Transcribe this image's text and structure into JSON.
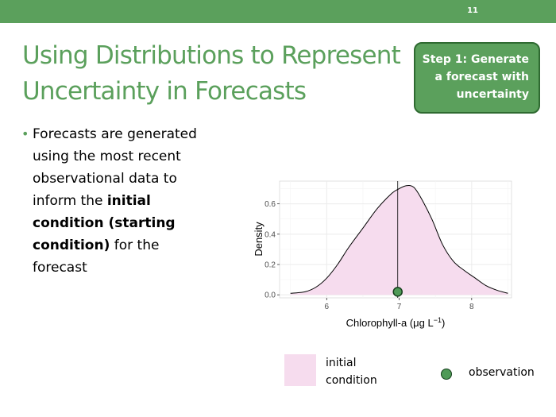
{
  "slide": {
    "number": "11",
    "title_lines": [
      "Using Distributions to Represent",
      "Uncertainty in Forecasts"
    ],
    "step_box_lines": [
      "Step 1: Generate",
      "a forecast with",
      "uncertainty"
    ],
    "bullet": {
      "lines": [
        {
          "pre": "Forecasts are generated",
          "bold": "",
          "post": ""
        },
        {
          "pre": "using the most recent",
          "bold": "",
          "post": ""
        },
        {
          "pre": "observational data to",
          "bold": "",
          "post": ""
        },
        {
          "pre": "inform the ",
          "bold": "initial",
          "post": ""
        },
        {
          "pre": "",
          "bold": "condition (starting",
          "post": ""
        },
        {
          "pre": "",
          "bold": "condition)",
          "post": " for the"
        },
        {
          "pre": "forecast",
          "bold": "",
          "post": ""
        }
      ]
    },
    "legend": {
      "initial_condition_lines": [
        "initial",
        "condition"
      ],
      "observation_label": "observation"
    },
    "colors": {
      "accent": "#5ba05c",
      "density_fill": "#f6dcee",
      "observation_fill": "#4f9a57"
    }
  },
  "chart_data": {
    "type": "area",
    "xlabel": "Chlorophyll-a (μg L",
    "xlabel_sup": "−1",
    "xlabel_close": ")",
    "ylabel": "Density",
    "xlim": [
      5.35,
      8.55
    ],
    "ylim": [
      -0.02,
      0.75
    ],
    "x_ticks": [
      6,
      7,
      8
    ],
    "y_ticks": [
      0.0,
      0.2,
      0.4,
      0.6
    ],
    "y_tick_labels": [
      "0.0",
      "0.2",
      "0.4",
      "0.6"
    ],
    "grid": true,
    "series": [
      {
        "x": [
          5.5,
          5.7,
          5.85,
          6.0,
          6.15,
          6.3,
          6.5,
          6.7,
          6.9,
          7.0,
          7.1,
          7.2,
          7.3,
          7.45,
          7.6,
          7.75,
          7.9,
          8.05,
          8.2,
          8.35,
          8.5
        ],
        "y": [
          0.01,
          0.02,
          0.05,
          0.11,
          0.2,
          0.31,
          0.44,
          0.57,
          0.67,
          0.7,
          0.72,
          0.71,
          0.64,
          0.5,
          0.33,
          0.22,
          0.16,
          0.11,
          0.06,
          0.03,
          0.01
        ]
      }
    ],
    "observation": {
      "x": 6.98,
      "y": 0.02
    },
    "vline": 6.98
  }
}
